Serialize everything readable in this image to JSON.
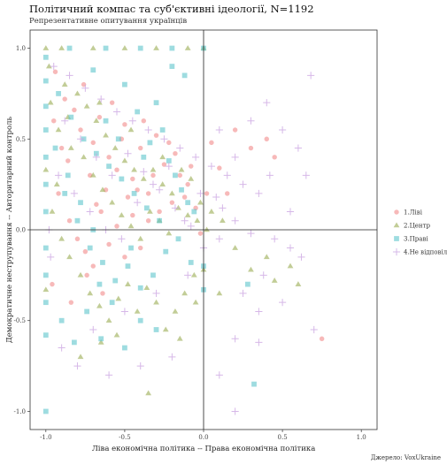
{
  "chart_data": {
    "type": "scatter",
    "title": "Політичний компас та суб'єктивні ідеології, N=1192",
    "subtitle": "Репрезентативне опитування українців",
    "xlabel": "Ліва економічна політика -- Права економічна політика",
    "ylabel": "Демократичне неструпування -- Авторитарний контроль",
    "caption": "Джерело: VoxUkraine",
    "xlim": [
      -1.1,
      1.1
    ],
    "ylim": [
      -1.1,
      1.1
    ],
    "x_ticks": [
      "-1.0",
      "-0.5",
      "0.0",
      "0.5",
      "1.0"
    ],
    "y_ticks": [
      "-1.0",
      "-0.5",
      "0.0",
      "0.5",
      "1.0"
    ],
    "grid": false,
    "legend_position": "right",
    "series": [
      {
        "name": "1.Ліві",
        "marker": "circle",
        "color": "#f08080",
        "points": [
          [
            -0.94,
            0.87
          ],
          [
            -0.88,
            0.72
          ],
          [
            -0.82,
            0.66
          ],
          [
            -0.78,
            0.55
          ],
          [
            -0.7,
            0.48
          ],
          [
            -0.66,
            0.62
          ],
          [
            -0.6,
            0.4
          ],
          [
            -0.55,
            0.33
          ],
          [
            -0.5,
            0.58
          ],
          [
            -0.45,
            0.28
          ],
          [
            -0.4,
            0.45
          ],
          [
            -0.35,
            0.2
          ],
          [
            -0.3,
            0.52
          ],
          [
            -0.25,
            0.36
          ],
          [
            -0.2,
            0.15
          ],
          [
            -0.15,
            0.3
          ],
          [
            -0.1,
            0.25
          ],
          [
            -0.05,
            0.12
          ],
          [
            0.05,
            0.48
          ],
          [
            0.1,
            0.34
          ],
          [
            0.15,
            0.2
          ],
          [
            0.2,
            0.55
          ],
          [
            0.3,
            0.45
          ],
          [
            0.4,
            0.5
          ],
          [
            0.45,
            0.4
          ],
          [
            0.75,
            -0.6
          ],
          [
            -0.92,
            0.2
          ],
          [
            -0.85,
            0.05
          ],
          [
            -0.8,
            -0.05
          ],
          [
            -0.75,
            -0.12
          ],
          [
            -0.7,
            -0.2
          ],
          [
            -0.65,
            0.1
          ],
          [
            -0.6,
            -0.08
          ],
          [
            -0.55,
            0.02
          ],
          [
            -0.5,
            -0.15
          ],
          [
            -0.45,
            0.08
          ],
          [
            -0.4,
            -0.1
          ],
          [
            -0.35,
            0.05
          ],
          [
            -0.9,
            0.45
          ],
          [
            -0.72,
            0.3
          ],
          [
            -0.62,
            0.22
          ],
          [
            -0.58,
            0.7
          ],
          [
            -0.48,
            0.18
          ],
          [
            -0.38,
            0.6
          ],
          [
            -0.28,
            0.1
          ],
          [
            -0.18,
            0.42
          ],
          [
            -0.08,
            0.35
          ],
          [
            -0.95,
            0.6
          ],
          [
            -0.86,
            0.38
          ],
          [
            -0.76,
            0.8
          ],
          [
            -0.68,
            0.14
          ],
          [
            -0.52,
            0.5
          ],
          [
            -0.42,
            0.22
          ],
          [
            -0.32,
            0.3
          ],
          [
            -0.22,
            0.48
          ],
          [
            -0.12,
            0.18
          ],
          [
            -0.96,
            -0.3
          ],
          [
            -0.84,
            -0.4
          ],
          [
            -0.74,
            -0.25
          ],
          [
            -0.64,
            -0.35
          ],
          [
            0.02,
            0.2
          ],
          [
            -0.02,
            -0.02
          ]
        ]
      },
      {
        "name": "2.Центр",
        "marker": "triangle",
        "color": "#9aab52",
        "points": [
          [
            -1.0,
            1.0
          ],
          [
            -0.9,
            1.0
          ],
          [
            -0.7,
            1.0
          ],
          [
            -0.5,
            1.0
          ],
          [
            -0.3,
            1.0
          ],
          [
            -0.1,
            1.0
          ],
          [
            -0.98,
            0.9
          ],
          [
            -0.88,
            0.8
          ],
          [
            -0.8,
            0.75
          ],
          [
            -0.74,
            0.68
          ],
          [
            -0.68,
            0.6
          ],
          [
            -0.62,
            0.52
          ],
          [
            -0.56,
            0.45
          ],
          [
            -0.5,
            0.38
          ],
          [
            -0.44,
            0.33
          ],
          [
            -0.38,
            0.28
          ],
          [
            -0.32,
            0.33
          ],
          [
            -0.26,
            0.25
          ],
          [
            -0.2,
            0.2
          ],
          [
            -0.14,
            0.33
          ],
          [
            -0.08,
            0.28
          ],
          [
            -0.02,
            0.15
          ],
          [
            0.05,
            0.1
          ],
          [
            0.12,
            0.05
          ],
          [
            0.2,
            -0.1
          ],
          [
            0.3,
            -0.22
          ],
          [
            0.4,
            -0.15
          ],
          [
            0.45,
            -0.28
          ],
          [
            0.55,
            -0.2
          ],
          [
            0.6,
            -0.3
          ],
          [
            -0.96,
            0.1
          ],
          [
            -0.9,
            -0.05
          ],
          [
            -0.85,
            -0.15
          ],
          [
            -0.78,
            -0.25
          ],
          [
            -0.72,
            -0.35
          ],
          [
            -0.66,
            -0.42
          ],
          [
            -0.6,
            -0.5
          ],
          [
            -0.54,
            -0.38
          ],
          [
            -0.48,
            -0.3
          ],
          [
            -0.42,
            -0.45
          ],
          [
            -0.36,
            -0.32
          ],
          [
            -0.3,
            -0.4
          ],
          [
            -0.24,
            -0.55
          ],
          [
            -0.18,
            -0.45
          ],
          [
            -0.12,
            -0.35
          ],
          [
            -0.06,
            -0.25
          ],
          [
            0.0,
            -0.22
          ],
          [
            -0.35,
            -0.9
          ],
          [
            -0.78,
            -0.7
          ],
          [
            -0.65,
            -0.62
          ],
          [
            -0.55,
            -0.58
          ],
          [
            -0.15,
            -0.6
          ],
          [
            -0.05,
            -0.4
          ],
          [
            0.1,
            -0.35
          ],
          [
            -0.92,
            0.55
          ],
          [
            -0.84,
            0.45
          ],
          [
            -0.76,
            0.4
          ],
          [
            -0.7,
            0.3
          ],
          [
            -0.64,
            0.22
          ],
          [
            -0.58,
            0.15
          ],
          [
            -0.52,
            0.08
          ],
          [
            -0.46,
            0.02
          ],
          [
            -0.4,
            -0.05
          ],
          [
            -0.34,
            0.1
          ],
          [
            -0.28,
            0.05
          ],
          [
            -0.22,
            -0.02
          ],
          [
            -0.16,
            0.12
          ],
          [
            -0.1,
            0.08
          ],
          [
            -0.04,
            0.05
          ],
          [
            0.02,
            0.0
          ],
          [
            -0.86,
            0.62
          ],
          [
            -0.66,
            0.7
          ],
          [
            -0.46,
            0.55
          ],
          [
            -0.26,
            0.4
          ],
          [
            -1.0,
            0.33
          ],
          [
            -1.0,
            -0.33
          ],
          [
            -0.97,
            0.7
          ],
          [
            -0.93,
            0.25
          ],
          [
            0.0,
            1.0
          ]
        ]
      },
      {
        "name": "3.Праві",
        "marker": "square",
        "color": "#5ec4cc",
        "points": [
          [
            -1.0,
            0.95
          ],
          [
            -1.0,
            0.82
          ],
          [
            -1.0,
            0.68
          ],
          [
            -1.0,
            0.55
          ],
          [
            -1.0,
            0.4
          ],
          [
            -1.0,
            0.25
          ],
          [
            -1.0,
            0.1
          ],
          [
            -1.0,
            -0.1
          ],
          [
            -1.0,
            -0.25
          ],
          [
            -1.0,
            -0.4
          ],
          [
            -1.0,
            -0.58
          ],
          [
            -1.0,
            -1.0
          ],
          [
            -0.85,
            1.0
          ],
          [
            -0.62,
            1.0
          ],
          [
            -0.4,
            1.0
          ],
          [
            -0.2,
            1.0
          ],
          [
            0.0,
            1.0
          ],
          [
            -0.92,
            0.75
          ],
          [
            -0.84,
            0.62
          ],
          [
            -0.76,
            0.5
          ],
          [
            -0.68,
            0.42
          ],
          [
            -0.6,
            0.35
          ],
          [
            -0.52,
            0.28
          ],
          [
            -0.44,
            0.2
          ],
          [
            -0.36,
            0.12
          ],
          [
            -0.28,
            0.05
          ],
          [
            -0.2,
            0.9
          ],
          [
            -0.12,
            0.85
          ],
          [
            -0.3,
            0.7
          ],
          [
            -0.5,
            0.8
          ],
          [
            -0.7,
            0.88
          ],
          [
            -0.88,
            0.2
          ],
          [
            -0.8,
            0.05
          ],
          [
            -0.72,
            -0.1
          ],
          [
            -0.64,
            -0.18
          ],
          [
            -0.56,
            -0.28
          ],
          [
            -0.48,
            -0.2
          ],
          [
            -0.4,
            -0.32
          ],
          [
            -0.32,
            -0.25
          ],
          [
            -0.24,
            -0.12
          ],
          [
            -0.16,
            -0.05
          ],
          [
            -0.08,
            -0.18
          ],
          [
            0.0,
            -0.33
          ],
          [
            -0.65,
            -0.6
          ],
          [
            -0.5,
            -0.65
          ],
          [
            -0.4,
            -0.5
          ],
          [
            -0.3,
            -0.55
          ],
          [
            -0.58,
            -0.4
          ],
          [
            -0.46,
            -0.1
          ],
          [
            -0.38,
            0.4
          ],
          [
            -0.26,
            0.55
          ],
          [
            -0.18,
            0.3
          ],
          [
            -0.1,
            0.15
          ],
          [
            0.32,
            -0.85
          ],
          [
            0.28,
            -0.3
          ],
          [
            -0.94,
            0.45
          ],
          [
            -0.86,
            0.3
          ],
          [
            -0.78,
            0.15
          ],
          [
            -0.7,
            0.0
          ],
          [
            -0.62,
            0.6
          ],
          [
            -0.54,
            0.5
          ],
          [
            -0.42,
            0.65
          ],
          [
            -0.34,
            0.48
          ],
          [
            -0.22,
            0.38
          ],
          [
            -0.14,
            0.22
          ],
          [
            -0.06,
            0.1
          ],
          [
            -0.9,
            -0.5
          ],
          [
            -0.82,
            -0.62
          ],
          [
            -0.74,
            -0.45
          ],
          [
            -0.66,
            -0.3
          ],
          [
            0.0,
            -0.2
          ]
        ]
      },
      {
        "name": "4.Не відповіли",
        "marker": "cross",
        "color": "#c8a0e0",
        "points": [
          [
            -0.95,
            0.9
          ],
          [
            -0.85,
            0.85
          ],
          [
            -0.75,
            0.78
          ],
          [
            -0.65,
            0.72
          ],
          [
            -0.55,
            0.65
          ],
          [
            -0.45,
            0.6
          ],
          [
            -0.35,
            0.55
          ],
          [
            -0.25,
            0.5
          ],
          [
            -0.15,
            0.45
          ],
          [
            -0.05,
            0.4
          ],
          [
            0.05,
            0.35
          ],
          [
            0.15,
            0.3
          ],
          [
            0.25,
            0.25
          ],
          [
            0.35,
            0.2
          ],
          [
            0.5,
            0.55
          ],
          [
            0.6,
            0.45
          ],
          [
            0.65,
            0.3
          ],
          [
            0.4,
            0.7
          ],
          [
            0.3,
            0.6
          ],
          [
            0.2,
            0.4
          ],
          [
            0.1,
            0.55
          ],
          [
            0.2,
            0.05
          ],
          [
            0.3,
            -0.02
          ],
          [
            0.45,
            -0.05
          ],
          [
            0.55,
            -0.1
          ],
          [
            0.62,
            -0.15
          ],
          [
            0.25,
            -0.35
          ],
          [
            0.35,
            -0.45
          ],
          [
            0.5,
            -0.4
          ],
          [
            0.2,
            -0.6
          ],
          [
            0.35,
            -0.62
          ],
          [
            0.7,
            -0.55
          ],
          [
            0.2,
            -1.0
          ],
          [
            0.1,
            -0.8
          ],
          [
            -0.2,
            -0.7
          ],
          [
            -0.4,
            -0.75
          ],
          [
            -0.6,
            -0.8
          ],
          [
            -0.8,
            -0.75
          ],
          [
            -0.9,
            -0.65
          ],
          [
            -0.7,
            -0.55
          ],
          [
            -0.5,
            -0.45
          ],
          [
            -0.3,
            -0.35
          ],
          [
            -0.1,
            -0.25
          ],
          [
            0.0,
            -0.1
          ],
          [
            0.1,
            -0.05
          ],
          [
            -0.92,
            0.3
          ],
          [
            -0.82,
            0.2
          ],
          [
            -0.72,
            0.1
          ],
          [
            -0.62,
            0.0
          ],
          [
            -0.52,
            -0.05
          ],
          [
            -0.42,
            0.15
          ],
          [
            -0.32,
            0.25
          ],
          [
            -0.22,
            0.35
          ],
          [
            -0.12,
            0.05
          ],
          [
            -0.02,
            0.2
          ],
          [
            0.08,
            0.18
          ],
          [
            -0.88,
            0.6
          ],
          [
            -0.78,
            0.5
          ],
          [
            -0.68,
            0.4
          ],
          [
            -0.58,
            0.3
          ],
          [
            -0.48,
            0.42
          ],
          [
            -0.38,
            0.32
          ],
          [
            -0.28,
            0.22
          ],
          [
            -0.18,
            0.12
          ],
          [
            -0.08,
            0.02
          ],
          [
            0.12,
            0.12
          ],
          [
            -0.98,
            0.0
          ],
          [
            -0.97,
            -0.15
          ],
          [
            0.42,
            0.3
          ],
          [
            0.55,
            0.1
          ],
          [
            0.38,
            -0.25
          ],
          [
            0.68,
            0.85
          ]
        ]
      }
    ]
  }
}
